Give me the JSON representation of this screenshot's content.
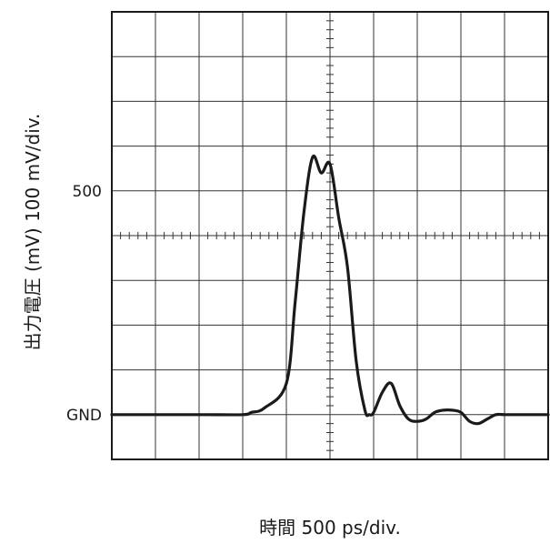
{
  "chart_data": {
    "type": "line",
    "xlabel": "時間 500 ps/div.",
    "ylabel": "出力電圧 (mV) 100 mV/div.",
    "xlim": [
      -2500,
      2500
    ],
    "ylim": [
      -100,
      900
    ],
    "grid": true,
    "y_ticks": [
      {
        "value": 500,
        "label": "500"
      },
      {
        "value": 0,
        "label": "GND"
      }
    ],
    "series": [
      {
        "x": [
          -2500,
          -1500,
          -1000,
          -900,
          -750,
          -500,
          -400,
          -300,
          -200,
          -100,
          0,
          100,
          200,
          300,
          400,
          450,
          500,
          600,
          700,
          800,
          900,
          1000,
          1100,
          1200,
          1300,
          1400,
          1500,
          1600,
          1700,
          1800,
          1900,
          2000,
          2100,
          2200,
          2300,
          2400,
          2500
        ],
        "y": [
          0,
          0,
          0,
          5,
          15,
          70,
          250,
          450,
          575,
          540,
          560,
          440,
          330,
          120,
          10,
          0,
          5,
          50,
          70,
          20,
          -10,
          -15,
          -10,
          5,
          10,
          10,
          5,
          -15,
          -20,
          -10,
          0,
          0,
          0,
          0,
          0,
          0,
          0
        ]
      }
    ]
  }
}
